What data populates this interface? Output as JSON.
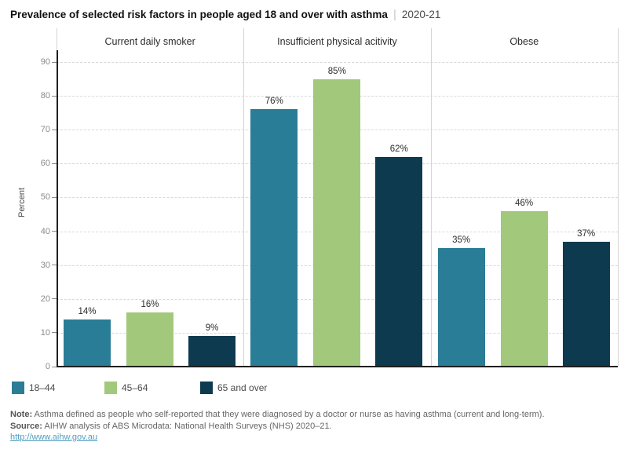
{
  "title": {
    "main": "Prevalence of selected risk factors in people aged 18 and over with asthma",
    "separator": "|",
    "period": "2020-21"
  },
  "y_axis": {
    "label": "Percent",
    "ticks": [
      "0",
      "10",
      "20",
      "30",
      "40",
      "50",
      "60",
      "70",
      "80",
      "90"
    ],
    "max": 90
  },
  "chart_data": {
    "type": "bar",
    "title": "Prevalence of selected risk factors in people aged 18 and over with asthma | 2020-21",
    "xlabel": "",
    "ylabel": "Percent",
    "ylim": [
      0,
      90
    ],
    "grid": true,
    "legend_position": "bottom-left",
    "categories": [
      "Current daily smoker",
      "Insufficient physical acitivity",
      "Obese"
    ],
    "series": [
      {
        "name": "18–44",
        "color": "#2a7d96",
        "values": [
          14,
          76,
          35
        ],
        "labels": [
          "14%",
          "76%",
          "35%"
        ]
      },
      {
        "name": "45–64",
        "color": "#a2c97b",
        "values": [
          16,
          85,
          46
        ],
        "labels": [
          "16%",
          "85%",
          "46%"
        ]
      },
      {
        "name": "65 and over",
        "color": "#0e3a50",
        "values": [
          9,
          62,
          37
        ],
        "labels": [
          "9%",
          "62%",
          "37%"
        ]
      }
    ]
  },
  "notes": {
    "note_label": "Note:",
    "note_text": " Asthma defined as people who self-reported that they were diagnosed by a doctor or nurse as having asthma (current and long-term).",
    "source_label": "Source:",
    "source_text": " AIHW analysis of ABS Microdata: National Health Surveys (NHS) 2020–21.",
    "link": "http://www.aihw.gov.au"
  }
}
